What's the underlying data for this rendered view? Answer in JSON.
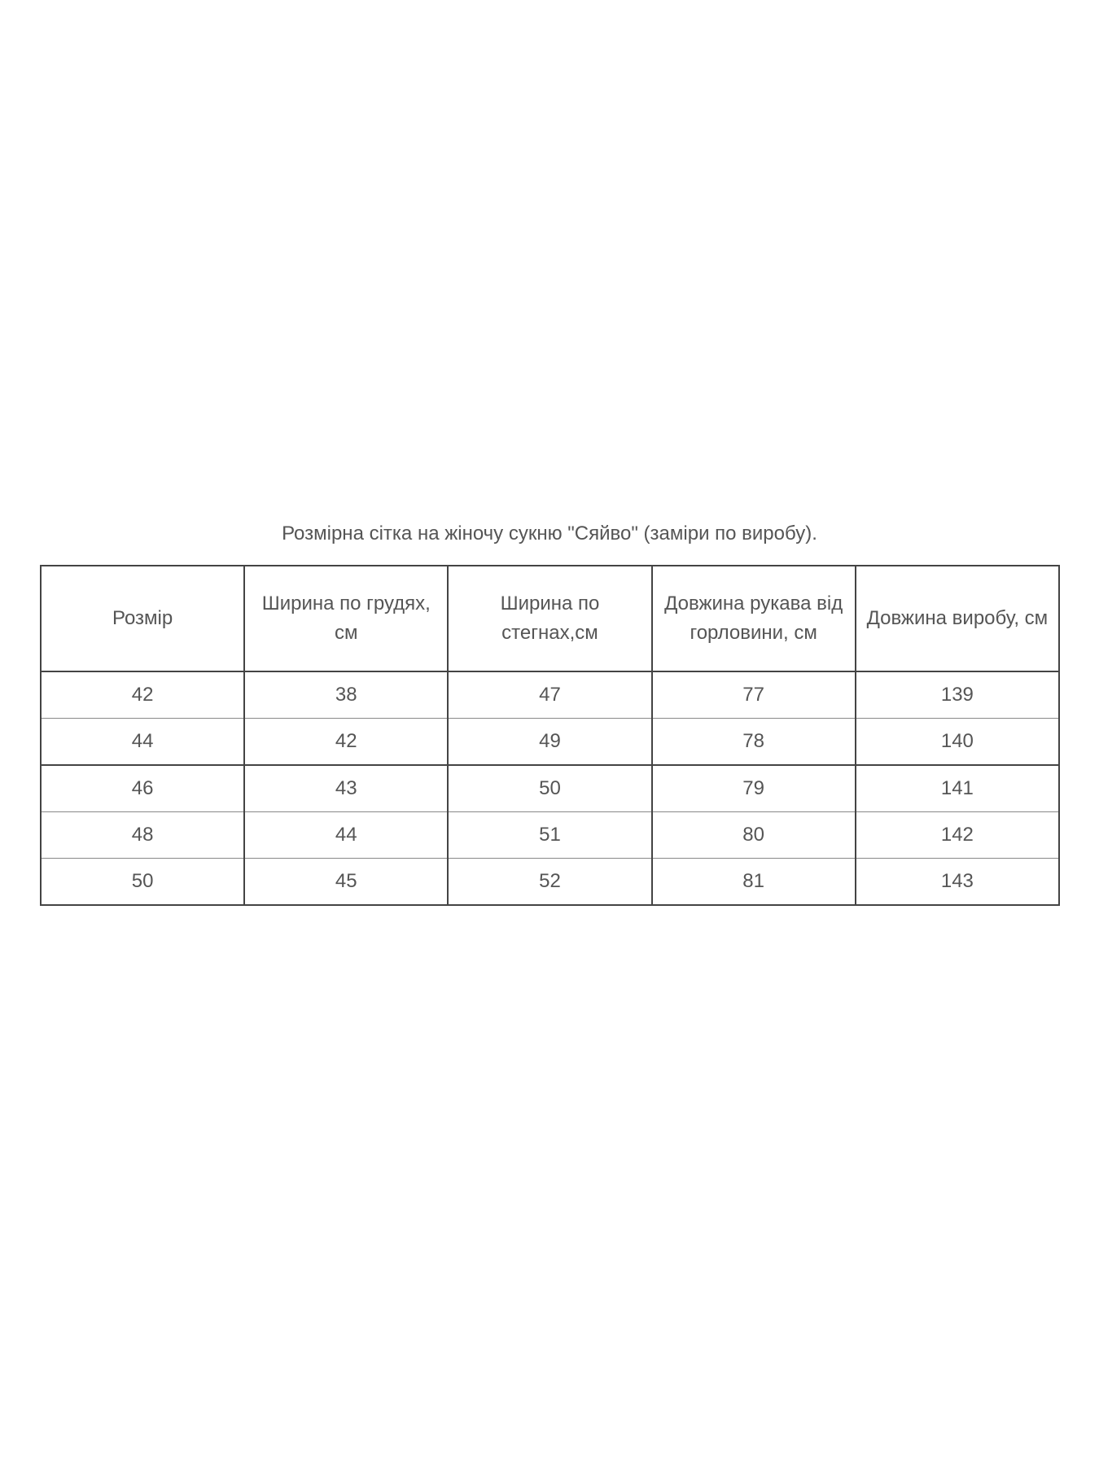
{
  "title": "Розмірна сітка на жіночу сукню \"Сяйво\" (заміри по виробу).",
  "table": {
    "headers": [
      "Розмір",
      "Ширина по грудях, см",
      "Ширина по стегнах,см",
      "Довжина рукава від горловини, см",
      "Довжина виробу, см"
    ],
    "rows": [
      [
        "42",
        "38",
        "47",
        "77",
        "139"
      ],
      [
        "44",
        "42",
        "49",
        "78",
        "140"
      ],
      [
        "46",
        "43",
        "50",
        "79",
        "141"
      ],
      [
        "48",
        "44",
        "51",
        "80",
        "142"
      ],
      [
        "50",
        "45",
        "52",
        "81",
        "143"
      ]
    ]
  }
}
